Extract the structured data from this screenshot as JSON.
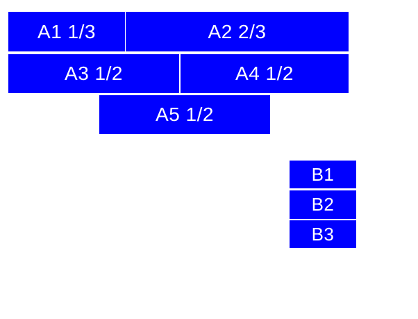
{
  "colors": {
    "background": "#ffffff",
    "box_fill": "#0000ff",
    "box_text": "#ffffff"
  },
  "boxes": {
    "a1": {
      "label": "A1 1/3"
    },
    "a2": {
      "label": "A2 2/3"
    },
    "a3": {
      "label": "A3 1/2"
    },
    "a4": {
      "label": "A4 1/2"
    },
    "a5": {
      "label": "A5 1/2"
    },
    "b1": {
      "label": "B1"
    },
    "b2": {
      "label": "B2"
    },
    "b3": {
      "label": "B3"
    }
  }
}
